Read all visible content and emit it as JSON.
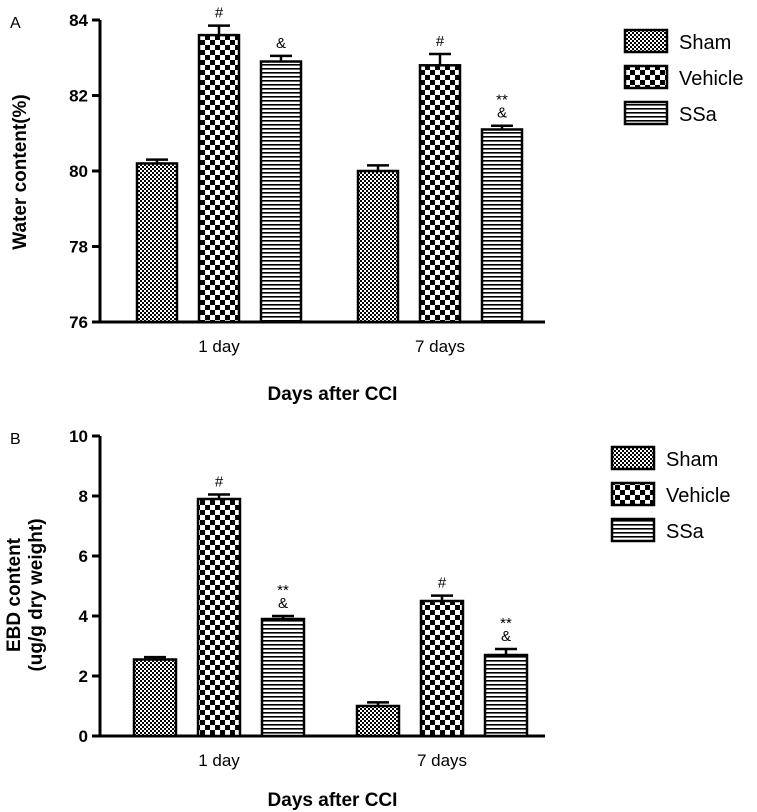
{
  "chart_data": [
    {
      "type": "bar",
      "panel": "A",
      "categories": [
        "1 day",
        "7 days"
      ],
      "series": [
        {
          "name": "Sham",
          "values": [
            80.2,
            80.0
          ],
          "errors": [
            0.1,
            0.15
          ],
          "annotations": [
            "",
            ""
          ]
        },
        {
          "name": "Vehicle",
          "values": [
            83.6,
            82.8
          ],
          "errors": [
            0.25,
            0.3
          ],
          "annotations": [
            "#",
            "#"
          ]
        },
        {
          "name": "SSa",
          "values": [
            82.9,
            81.1
          ],
          "errors": [
            0.15,
            0.1
          ],
          "annotations": [
            "&",
            "**\n&"
          ]
        }
      ],
      "xlabel": "Days after CCI",
      "ylabel": "Water content(%)",
      "ylim": [
        76,
        84
      ],
      "yticks": [
        76,
        78,
        80,
        82,
        84
      ],
      "grid": false,
      "legend": "right"
    },
    {
      "type": "bar",
      "panel": "B",
      "categories": [
        "1 day",
        "7 days"
      ],
      "series": [
        {
          "name": "Sham",
          "values": [
            2.55,
            1.0
          ],
          "errors": [
            0.08,
            0.12
          ],
          "annotations": [
            "",
            ""
          ]
        },
        {
          "name": "Vehicle",
          "values": [
            7.9,
            4.5
          ],
          "errors": [
            0.15,
            0.18
          ],
          "annotations": [
            "#",
            "#"
          ]
        },
        {
          "name": "SSa",
          "values": [
            3.9,
            2.7
          ],
          "errors": [
            0.1,
            0.2
          ],
          "annotations": [
            "**\n&",
            "**\n&"
          ]
        }
      ],
      "xlabel": "Days after CCI",
      "ylabel": [
        "EBD content",
        "(ug/g dry weight)"
      ],
      "ylim": [
        0,
        10
      ],
      "yticks": [
        0,
        2,
        4,
        6,
        8,
        10
      ],
      "grid": false,
      "legend": "right"
    }
  ],
  "colors": {
    "ink": "#000000",
    "background": "#ffffff"
  }
}
